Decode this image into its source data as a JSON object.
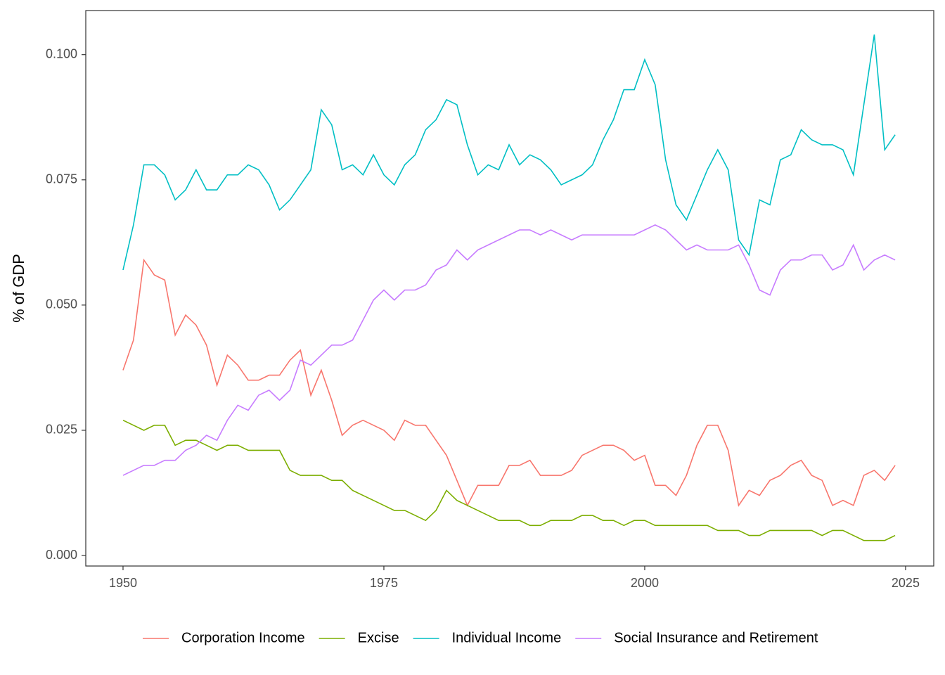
{
  "chart_data": {
    "type": "line",
    "y_label": "% of GDP",
    "x": [
      1950,
      1951,
      1952,
      1953,
      1954,
      1955,
      1956,
      1957,
      1958,
      1959,
      1960,
      1961,
      1962,
      1963,
      1964,
      1965,
      1966,
      1967,
      1968,
      1969,
      1970,
      1971,
      1972,
      1973,
      1974,
      1975,
      1976,
      1977,
      1978,
      1979,
      1980,
      1981,
      1982,
      1983,
      1984,
      1985,
      1986,
      1987,
      1988,
      1989,
      1990,
      1991,
      1992,
      1993,
      1994,
      1995,
      1996,
      1997,
      1998,
      1999,
      2000,
      2001,
      2002,
      2003,
      2004,
      2005,
      2006,
      2007,
      2008,
      2009,
      2010,
      2011,
      2012,
      2013,
      2014,
      2015,
      2016,
      2017,
      2018,
      2019,
      2020,
      2021,
      2022,
      2023,
      2024
    ],
    "series": [
      {
        "name": "Corporation Income",
        "color": "#F8766D",
        "values": [
          0.037,
          0.043,
          0.059,
          0.056,
          0.055,
          0.044,
          0.048,
          0.046,
          0.042,
          0.034,
          0.04,
          0.038,
          0.035,
          0.035,
          0.036,
          0.036,
          0.039,
          0.041,
          0.032,
          0.037,
          0.031,
          0.024,
          0.026,
          0.027,
          0.026,
          0.025,
          0.023,
          0.027,
          0.026,
          0.026,
          0.023,
          0.02,
          0.015,
          0.01,
          0.014,
          0.014,
          0.014,
          0.018,
          0.018,
          0.019,
          0.016,
          0.016,
          0.016,
          0.017,
          0.02,
          0.021,
          0.022,
          0.022,
          0.021,
          0.019,
          0.02,
          0.014,
          0.014,
          0.012,
          0.016,
          0.022,
          0.026,
          0.026,
          0.021,
          0.01,
          0.013,
          0.012,
          0.015,
          0.016,
          0.018,
          0.019,
          0.016,
          0.015,
          0.01,
          0.011,
          0.01,
          0.016,
          0.017,
          0.015,
          0.018
        ]
      },
      {
        "name": "Excise",
        "color": "#7CAE00",
        "values": [
          0.027,
          0.026,
          0.025,
          0.026,
          0.026,
          0.022,
          0.023,
          0.023,
          0.022,
          0.021,
          0.022,
          0.022,
          0.021,
          0.021,
          0.021,
          0.021,
          0.017,
          0.016,
          0.016,
          0.016,
          0.015,
          0.015,
          0.013,
          0.012,
          0.011,
          0.01,
          0.009,
          0.009,
          0.008,
          0.007,
          0.009,
          0.013,
          0.011,
          0.01,
          0.009,
          0.008,
          0.007,
          0.007,
          0.007,
          0.006,
          0.006,
          0.007,
          0.007,
          0.007,
          0.008,
          0.008,
          0.007,
          0.007,
          0.006,
          0.007,
          0.007,
          0.006,
          0.006,
          0.006,
          0.006,
          0.006,
          0.006,
          0.005,
          0.005,
          0.005,
          0.004,
          0.004,
          0.005,
          0.005,
          0.005,
          0.005,
          0.005,
          0.004,
          0.005,
          0.005,
          0.004,
          0.003,
          0.003,
          0.003,
          0.004
        ]
      },
      {
        "name": "Individual Income",
        "color": "#00BFC4",
        "values": [
          0.057,
          0.066,
          0.078,
          0.078,
          0.076,
          0.071,
          0.073,
          0.077,
          0.073,
          0.073,
          0.076,
          0.076,
          0.078,
          0.077,
          0.074,
          0.069,
          0.071,
          0.074,
          0.077,
          0.089,
          0.086,
          0.077,
          0.078,
          0.076,
          0.08,
          0.076,
          0.074,
          0.078,
          0.08,
          0.085,
          0.087,
          0.091,
          0.09,
          0.082,
          0.076,
          0.078,
          0.077,
          0.082,
          0.078,
          0.08,
          0.079,
          0.077,
          0.074,
          0.075,
          0.076,
          0.078,
          0.083,
          0.087,
          0.093,
          0.093,
          0.099,
          0.094,
          0.079,
          0.07,
          0.067,
          0.072,
          0.077,
          0.081,
          0.077,
          0.063,
          0.06,
          0.071,
          0.07,
          0.079,
          0.08,
          0.085,
          0.083,
          0.082,
          0.082,
          0.081,
          0.076,
          0.09,
          0.104,
          0.081,
          0.084
        ]
      },
      {
        "name": "Social Insurance and Retirement",
        "color": "#C77CFF",
        "values": [
          0.016,
          0.017,
          0.018,
          0.018,
          0.019,
          0.019,
          0.021,
          0.022,
          0.024,
          0.023,
          0.027,
          0.03,
          0.029,
          0.032,
          0.033,
          0.031,
          0.033,
          0.039,
          0.038,
          0.04,
          0.042,
          0.042,
          0.043,
          0.047,
          0.051,
          0.053,
          0.051,
          0.053,
          0.053,
          0.054,
          0.057,
          0.058,
          0.061,
          0.059,
          0.061,
          0.062,
          0.063,
          0.064,
          0.065,
          0.065,
          0.064,
          0.065,
          0.064,
          0.063,
          0.064,
          0.064,
          0.064,
          0.064,
          0.064,
          0.064,
          0.065,
          0.066,
          0.065,
          0.063,
          0.061,
          0.062,
          0.061,
          0.061,
          0.061,
          0.062,
          0.058,
          0.053,
          0.052,
          0.057,
          0.059,
          0.059,
          0.06,
          0.06,
          0.057,
          0.058,
          0.062,
          0.057,
          0.059,
          0.06,
          0.059
        ]
      }
    ],
    "xlim": [
      1946.43,
      2027.7
    ],
    "xticks": [
      1950,
      1975,
      2000,
      2025
    ],
    "ylim": [
      -0.0021,
      0.1088
    ],
    "yticks": [
      {
        "value": 0,
        "label": "0.000"
      },
      {
        "value": 0.025,
        "label": "0.025"
      },
      {
        "value": 0.05,
        "label": "0.050"
      },
      {
        "value": 0.075,
        "label": "0.075"
      },
      {
        "value": 0.1,
        "label": "0.100"
      }
    ],
    "legend": "bottom"
  }
}
